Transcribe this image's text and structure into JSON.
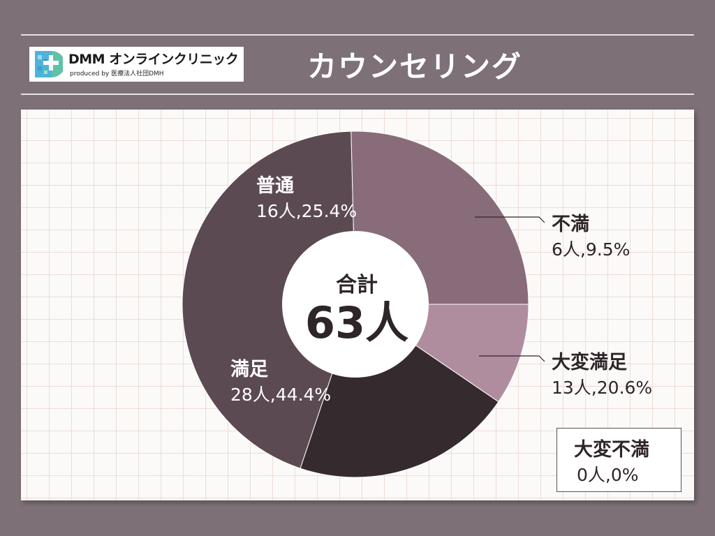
{
  "header": {
    "logo": {
      "brand": "DMM オンラインクリニック",
      "sub": "produced by 医療法人社団DMH"
    },
    "title": "カウンセリング"
  },
  "colors": {
    "background": "#7d7076",
    "panel": "#fbfaf8",
    "grid": "#ecdcd5",
    "text_dark": "#2e2528"
  },
  "chart_data": {
    "type": "pie",
    "donut": true,
    "center_label": "合計",
    "center_value": "63人",
    "total": 63,
    "slices": [
      {
        "category": "不満",
        "count": 6,
        "percent": 9.5,
        "count_label": "6人,9.5%",
        "color": "#af8d9f"
      },
      {
        "category": "大変満足",
        "count": 13,
        "percent": 20.6,
        "count_label": "13人,20.6%",
        "color": "#352a2d"
      },
      {
        "category": "満足",
        "count": 28,
        "percent": 44.4,
        "count_label": "28人,44.4%",
        "color": "#5c4a53"
      },
      {
        "category": "普通",
        "count": 16,
        "percent": 25.4,
        "count_label": "16人,25.4%",
        "color": "#896c7a"
      }
    ],
    "zero_slice": {
      "category": "大変不満",
      "count": 0,
      "percent": 0,
      "count_label": "0人,0%"
    }
  }
}
